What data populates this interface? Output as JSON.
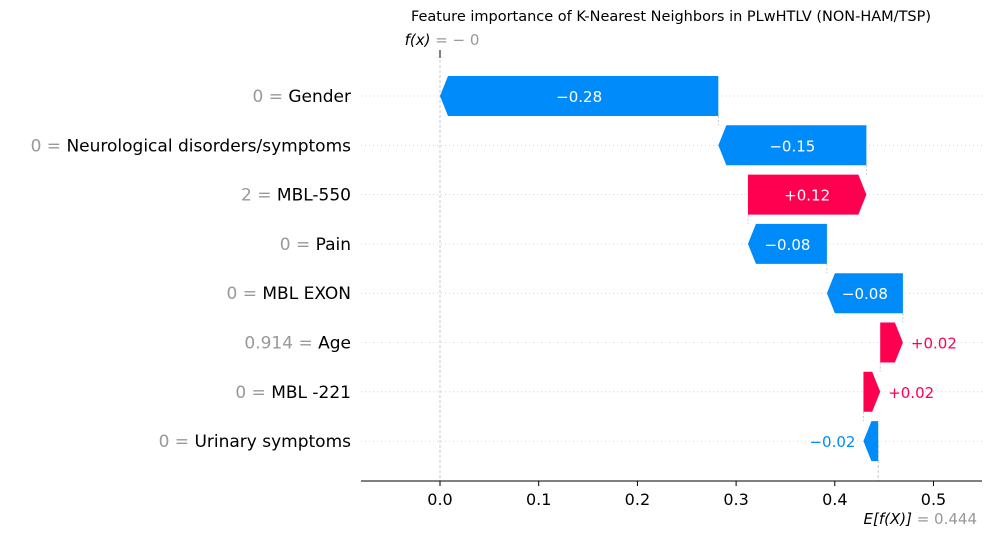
{
  "chart_data": {
    "type": "waterfall",
    "title": "Feature importance of K-Nearest Neighbors in PLwHTLV (NON-HAM/TSP)",
    "fx_label": "f(x)",
    "fx_value": "= − 0",
    "efx_label": "E[f(X)]",
    "efx_value": "= 0.444",
    "base_value": 0.444,
    "xlim": [
      -0.08,
      0.55
    ],
    "x_ticks": [
      0.0,
      0.1,
      0.2,
      0.3,
      0.4,
      0.5
    ],
    "x_tick_labels": [
      "0.0",
      "0.1",
      "0.2",
      "0.3",
      "0.4",
      "0.5"
    ],
    "features": [
      {
        "value": "0",
        "name": "Gender",
        "contribution": -0.28,
        "start": 0.282,
        "end": 0.0,
        "label": "−0.28"
      },
      {
        "value": "0",
        "name": "Neurological disorders/symptoms",
        "contribution": -0.15,
        "start": 0.432,
        "end": 0.282,
        "label": "−0.15"
      },
      {
        "value": "2",
        "name": "MBL-550",
        "contribution": 0.12,
        "start": 0.312,
        "end": 0.432,
        "label": "+0.12"
      },
      {
        "value": "0",
        "name": "Pain",
        "contribution": -0.08,
        "start": 0.392,
        "end": 0.312,
        "label": "−0.08"
      },
      {
        "value": "0",
        "name": "MBL EXON",
        "contribution": -0.08,
        "start": 0.469,
        "end": 0.392,
        "label": "−0.08"
      },
      {
        "value": "0.914",
        "name": "Age",
        "contribution": 0.02,
        "start": 0.446,
        "end": 0.469,
        "label": "+0.02"
      },
      {
        "value": "0",
        "name": "MBL -221",
        "contribution": 0.02,
        "start": 0.429,
        "end": 0.446,
        "label": "+0.02"
      },
      {
        "value": "0",
        "name": "Urinary symptoms",
        "contribution": -0.02,
        "start": 0.444,
        "end": 0.429,
        "label": "−0.02"
      }
    ],
    "colors": {
      "positive": "#ff0051",
      "negative": "#008bfb",
      "gray": "#999999",
      "grid": "#cccccc"
    },
    "grid": "dotted-horizontal"
  }
}
